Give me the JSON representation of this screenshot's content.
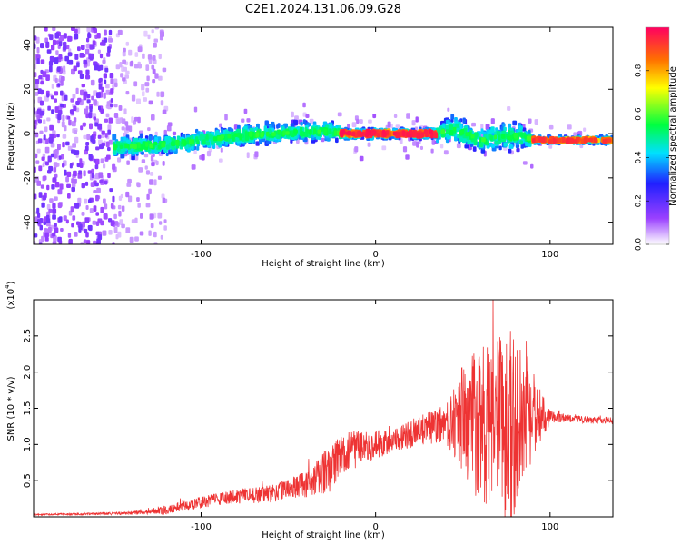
{
  "chart_data": [
    {
      "type": "heatmap",
      "title": "C2E1.2024.131.06.09.G28",
      "xlabel": "Height of straight line (km)",
      "ylabel": "Frequency (Hz)",
      "xlim": [
        -196,
        136
      ],
      "ylim": [
        -50,
        48
      ],
      "xticks": [
        -100,
        0,
        100
      ],
      "yticks": [
        -40,
        -20,
        0,
        20,
        40
      ],
      "colorbar": {
        "label": "Normalized spectral amplitude",
        "ticks": [
          "0.0",
          "0.2",
          "0.4",
          "0.6",
          "0.8"
        ],
        "range": [
          0,
          1
        ]
      },
      "ridge": {
        "x": [
          -150,
          -120,
          -100,
          -80,
          -60,
          -40,
          -25,
          -20,
          -10,
          0,
          20,
          35,
          45,
          60,
          75,
          85,
          95,
          110,
          125,
          136
        ],
        "y": [
          -6,
          -5,
          -3,
          -1,
          0,
          1,
          1,
          0,
          0,
          0,
          0,
          0,
          2,
          -3,
          -1,
          -2,
          -3,
          -3,
          -3,
          -3
        ]
      }
    },
    {
      "type": "line",
      "xlabel": "Height of straight line (km)",
      "ylabel": "SNR (10 * v/v)",
      "scale_label": "(x10",
      "scale_exp": "4",
      "scale_close": ")",
      "xlim": [
        -196,
        136
      ],
      "ylim": [
        0,
        3.0
      ],
      "xticks": [
        -100,
        0,
        100
      ],
      "yticks": [
        "0.5",
        "1.0",
        "1.5",
        "2.0",
        "2.5"
      ],
      "series": [
        {
          "name": "SNR",
          "color": "#ee3333",
          "x": [
            -196,
            -140,
            -120,
            -100,
            -80,
            -60,
            -40,
            -25,
            -20,
            -10,
            0,
            10,
            20,
            40,
            50,
            60,
            70,
            75,
            80,
            90,
            100,
            110,
            120,
            136
          ],
          "mean": [
            0.03,
            0.05,
            0.1,
            0.2,
            0.28,
            0.32,
            0.45,
            0.68,
            0.85,
            0.95,
            0.98,
            1.05,
            1.15,
            1.28,
            1.32,
            1.28,
            1.28,
            1.2,
            1.22,
            1.35,
            1.38,
            1.36,
            1.34,
            1.33
          ],
          "amp": [
            0.01,
            0.02,
            0.06,
            0.08,
            0.1,
            0.12,
            0.18,
            0.35,
            0.3,
            0.25,
            0.2,
            0.15,
            0.2,
            0.25,
            0.8,
            1.1,
            1.25,
            1.45,
            1.3,
            0.6,
            0.1,
            0.05,
            0.05,
            0.05
          ]
        }
      ]
    }
  ]
}
